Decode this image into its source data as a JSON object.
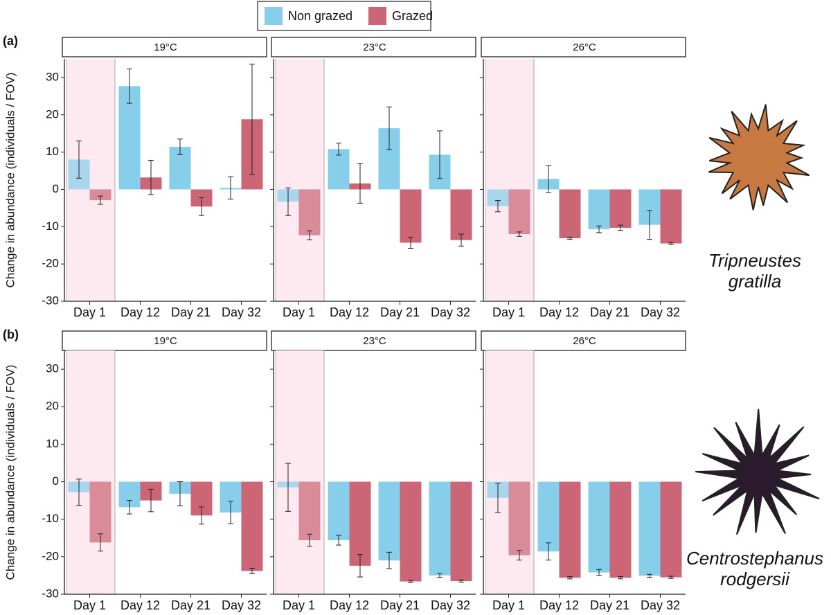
{
  "figure": {
    "rows": [
      {
        "label": "(a)",
        "ylabel": "Change in abundance (individuals / FOV)",
        "species": [
          "Tripneustes",
          "gratilla"
        ]
      },
      {
        "label": "(b)",
        "ylabel": "Change in abundance (individuals / FOV)",
        "species": [
          "Centrostephanus",
          "rodgersii"
        ]
      }
    ]
  },
  "chart_data": [
    {
      "type": "bar",
      "title": "19°C",
      "categories": [
        "Day 1",
        "Day 12",
        "Day 21",
        "Day 32"
      ],
      "ylim": [
        -30,
        35
      ],
      "yticks": [
        -30,
        -20,
        -10,
        0,
        10,
        20,
        30
      ],
      "series": [
        {
          "name": "Non grazed",
          "color": "#87ceeb",
          "values": [
            8,
            27.7,
            11.4,
            0.4
          ],
          "errors": [
            5,
            4.6,
            2.1,
            3
          ]
        },
        {
          "name": "Grazed",
          "color": "#cc6677",
          "values": [
            -2.9,
            3.2,
            -4.6,
            18.8
          ],
          "errors": [
            1.1,
            4.6,
            2.4,
            14.8
          ]
        }
      ]
    },
    {
      "type": "bar",
      "title": "23°C",
      "categories": [
        "Day 1",
        "Day 12",
        "Day 21",
        "Day 32"
      ],
      "ylim": [
        -30,
        35
      ],
      "yticks": [
        -30,
        -20,
        -10,
        0,
        10,
        20,
        30
      ],
      "series": [
        {
          "name": "Non grazed",
          "color": "#87ceeb",
          "values": [
            -3.3,
            10.8,
            16.4,
            9.3
          ],
          "errors": [
            3.7,
            1.6,
            5.7,
            6.4
          ]
        },
        {
          "name": "Grazed",
          "color": "#cc6677",
          "values": [
            -12.3,
            1.6,
            -14.3,
            -13.6
          ],
          "errors": [
            1.2,
            5.3,
            1.5,
            1.6
          ]
        }
      ]
    },
    {
      "type": "bar",
      "title": "26°C",
      "categories": [
        "Day 1",
        "Day 12",
        "Day 21",
        "Day 32"
      ],
      "ylim": [
        -30,
        35
      ],
      "yticks": [
        -30,
        -20,
        -10,
        0,
        10,
        20,
        30
      ],
      "series": [
        {
          "name": "Non grazed",
          "color": "#87ceeb",
          "values": [
            -4.5,
            2.8,
            -10.7,
            -9.5
          ],
          "errors": [
            1.5,
            3.6,
            0.9,
            3.9
          ]
        },
        {
          "name": "Grazed",
          "color": "#cc6677",
          "values": [
            -12,
            -13.1,
            -10.3,
            -14.5
          ],
          "errors": [
            0.6,
            0.3,
            0.7,
            0.3
          ]
        }
      ]
    },
    {
      "type": "bar",
      "title": "19°C",
      "categories": [
        "Day 1",
        "Day 12",
        "Day 21",
        "Day 32"
      ],
      "ylim": [
        -30,
        35
      ],
      "yticks": [
        -30,
        -20,
        -10,
        0,
        10,
        20,
        30
      ],
      "series": [
        {
          "name": "Non grazed",
          "color": "#87ceeb",
          "values": [
            -2.8,
            -6.8,
            -3.2,
            -8.2
          ],
          "errors": [
            3.5,
            1.8,
            3.2,
            3
          ]
        },
        {
          "name": "Grazed",
          "color": "#cc6677",
          "values": [
            -16.2,
            -5,
            -9,
            -23.8
          ],
          "errors": [
            2.3,
            3,
            2.3,
            0.7
          ]
        }
      ]
    },
    {
      "type": "bar",
      "title": "23°C",
      "categories": [
        "Day 1",
        "Day 12",
        "Day 21",
        "Day 32"
      ],
      "ylim": [
        -30,
        35
      ],
      "yticks": [
        -30,
        -20,
        -10,
        0,
        10,
        20,
        30
      ],
      "series": [
        {
          "name": "Non grazed",
          "color": "#87ceeb",
          "values": [
            -1.5,
            -15.6,
            -21,
            -25
          ],
          "errors": [
            6.4,
            1.3,
            2.2,
            0.5
          ]
        },
        {
          "name": "Grazed",
          "color": "#cc6677",
          "values": [
            -15.6,
            -22.4,
            -26.6,
            -26.5
          ],
          "errors": [
            1.6,
            3,
            0.3,
            0.3
          ]
        }
      ]
    },
    {
      "type": "bar",
      "title": "26°C",
      "categories": [
        "Day 1",
        "Day 12",
        "Day 21",
        "Day 32"
      ],
      "ylim": [
        -30,
        35
      ],
      "yticks": [
        -30,
        -20,
        -10,
        0,
        10,
        20,
        30
      ],
      "series": [
        {
          "name": "Non grazed",
          "color": "#87ceeb",
          "values": [
            -4.3,
            -18.6,
            -24.2,
            -25.1
          ],
          "errors": [
            3.9,
            2.3,
            0.8,
            0.4
          ]
        },
        {
          "name": "Grazed",
          "color": "#cc6677",
          "values": [
            -19.6,
            -25.6,
            -25.6,
            -25.5
          ],
          "errors": [
            1.3,
            0.3,
            0.3,
            0.3
          ]
        }
      ]
    }
  ]
}
